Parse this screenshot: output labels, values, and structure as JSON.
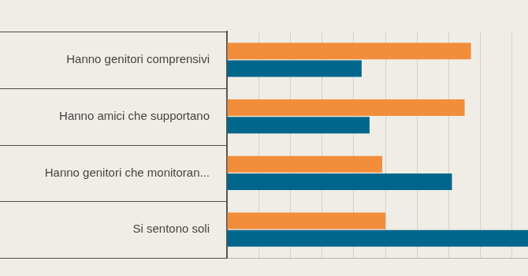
{
  "chart_data": {
    "type": "bar",
    "orientation": "horizontal",
    "categories": [
      "Hanno genitori comprensivi",
      "Hanno amici che supportano",
      "Hanno genitori che monitoran...",
      "Si sentono soli"
    ],
    "series": [
      {
        "color": "#f28e3b",
        "values": [
          7.7,
          7.5,
          4.9,
          5.0
        ]
      },
      {
        "color": "#00668c",
        "values": [
          4.25,
          4.5,
          7.1,
          9.5
        ]
      }
    ],
    "xlim": [
      0,
      9.5
    ],
    "xticks": [
      0,
      1,
      2,
      3,
      4,
      5,
      6,
      7,
      8,
      9
    ],
    "grid": true,
    "tick_labels": "y"
  }
}
